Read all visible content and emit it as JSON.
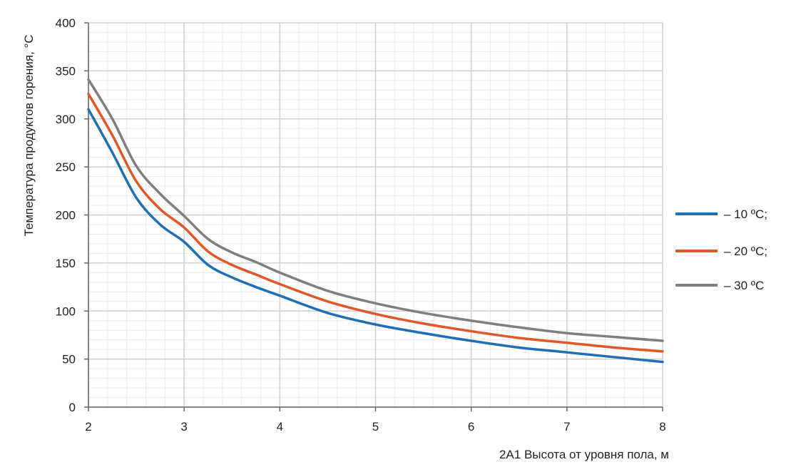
{
  "chart_data": {
    "type": "line",
    "xlabel": "2А1 Высота от уровня пола, м",
    "ylabel": "Температура продуктов горения, °С",
    "xlim": [
      2,
      8
    ],
    "ylim": [
      0,
      400
    ],
    "x_ticks": [
      "2",
      "3",
      "4",
      "5",
      "6",
      "7",
      "8"
    ],
    "y_ticks": [
      "0",
      "50",
      "100",
      "150",
      "200",
      "250",
      "300",
      "350",
      "400"
    ],
    "grid": true,
    "legend_position": "right",
    "x": [
      2,
      2.25,
      2.5,
      2.75,
      3,
      3.25,
      3.5,
      3.75,
      4,
      4.5,
      5,
      5.5,
      6,
      6.5,
      7,
      7.5,
      8
    ],
    "series": [
      {
        "name": "– 10 ºС;",
        "color": "#1f6fb2",
        "values": [
          310,
          265,
          218,
          190,
          172,
          148,
          135,
          125,
          116,
          98,
          86,
          77,
          69,
          62,
          57,
          52,
          47
        ]
      },
      {
        "name": "– 20 ºС;",
        "color": "#e0582a",
        "values": [
          326,
          283,
          235,
          206,
          187,
          162,
          148,
          138,
          128,
          110,
          97,
          87,
          79,
          72,
          67,
          62,
          58
        ]
      },
      {
        "name": "– 30 ºС",
        "color": "#7f7f7f",
        "values": [
          341,
          300,
          251,
          222,
          199,
          175,
          161,
          151,
          140,
          121,
          108,
          98,
          90,
          83,
          77,
          73,
          69
        ]
      }
    ]
  }
}
